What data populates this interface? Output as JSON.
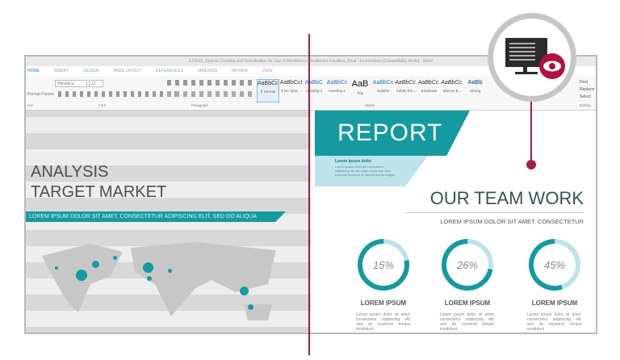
{
  "window": {
    "title": "170623_Options Creating and Coordination for Use of Members in Healthcare Facilities_Final - tourismdocx [Compatibility Mode] - Word"
  },
  "tabs": [
    "HOME",
    "INSERT",
    "DESIGN",
    "PAGE LAYOUT",
    "REFERENCES",
    "MAILINGS",
    "REVIEW",
    "VIEW"
  ],
  "ribbon": {
    "font_name": "Helvetica",
    "font_size": "12",
    "format_painter": "Format Painter",
    "groups": {
      "clipboard": "ard",
      "font": "Font",
      "paragraph": "Paragraph",
      "styles": "Styles",
      "editing": "Editing"
    },
    "styles": [
      {
        "sample": "AaBbCcI",
        "label": "¶ Normal"
      },
      {
        "sample": "AaBbCcI",
        "label": "¶ No Spac..."
      },
      {
        "sample": "AaBbC",
        "label": "Heading 1"
      },
      {
        "sample": "AaBbCc",
        "label": "Heading 2"
      },
      {
        "sample": "AaB",
        "label": "Title"
      },
      {
        "sample": "AaBbCc",
        "label": "Subtitle"
      },
      {
        "sample": "AaBbCc.",
        "label": "Subtle Em..."
      },
      {
        "sample": "AaBbCc.",
        "label": "Emphasis"
      },
      {
        "sample": "AaBbCc.",
        "label": "Intense E..."
      },
      {
        "sample": "AaBb",
        "label": "Strong"
      }
    ],
    "editing": [
      "Find",
      "Replace",
      "Select"
    ]
  },
  "left_page": {
    "title1": "ANALYSIS",
    "title2": "TARGET MARKET",
    "banner": "LOREM IPSUM DOLOR SIT AMET, CONSECTETUR ADIPISCING ELIT, SED DO ALIQUA"
  },
  "right_page": {
    "report": "REPORT",
    "box_title": "Lorem ipsum dolor",
    "box_text": "Lorem ipsum dolor sit consectetur adipiscing elit sed diam nonummy nibh euismod tincidunt ut laoreet dolore magna",
    "heading": "OUR TEAM WORK",
    "subheading": "LOREM IPSUM DOLOR SIT AMET, CONSECTETUR",
    "stats": [
      {
        "value": 15,
        "label": "15%",
        "title": "LOREM IPSUM",
        "text": "Lorem ipsum dolor sit amet, consectetur adipiscing elit, sed do eiusmod tempor incididunt"
      },
      {
        "value": 26,
        "label": "26%",
        "title": "LOREM IPSUM",
        "text": "Lorem ipsum dolor sit amet, consectetur adipiscing elit, sed do eiusmod tempor incididunt"
      },
      {
        "value": 45,
        "label": "45%",
        "title": "LOREM IPSUM",
        "text": "Lorem ipsum dolor sit amet, consectetur adipiscing elit, sed do eiusmod tempor incididunt"
      }
    ]
  },
  "colors": {
    "accent": "#159aa0",
    "light_accent": "#bfe3ea",
    "marker": "#b0123d"
  },
  "icons": [
    "monitor-icon",
    "eye-icon"
  ]
}
